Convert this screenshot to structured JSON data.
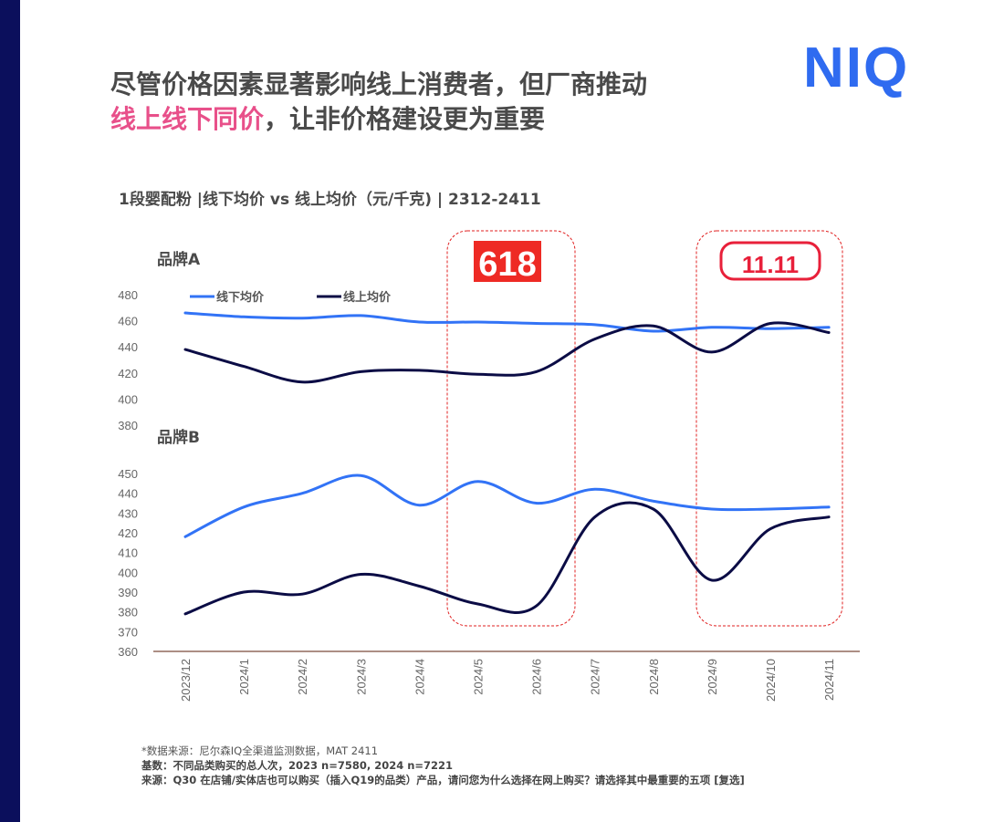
{
  "header": {
    "title_line1": "尽管价格因素显著影响线上消费者，但厂商推动",
    "title_line2_highlight": "线上线下同价",
    "title_line2_rest": "，让非价格建设更为重要",
    "logo": "NIQ"
  },
  "subtitle": "1段婴配粉 |线下均价 vs 线上均价（元/千克) | 2312-2411",
  "events": {
    "e618": "618",
    "e1111": "11.11"
  },
  "colors": {
    "offline": "#3273f6",
    "online": "#0b0c45",
    "highlight": "#e8508a",
    "event_box": "#e02020",
    "logo": "#2f6bf0"
  },
  "chart_data": [
    {
      "type": "line",
      "panel_label": "品牌A",
      "categories": [
        "2023/12",
        "2024/1",
        "2024/2",
        "2024/3",
        "2024/4",
        "2024/5",
        "2024/6",
        "2024/7",
        "2024/8",
        "2024/9",
        "2024/10",
        "2024/11"
      ],
      "ylim": [
        380,
        480
      ],
      "yticks": [
        "480",
        "460",
        "440",
        "420",
        "400",
        "380"
      ],
      "legend": "top-left",
      "grid": false,
      "series": [
        {
          "name": "线下均价",
          "values": [
            466,
            463,
            462,
            464,
            459,
            459,
            458,
            457,
            452,
            455,
            454,
            455
          ]
        },
        {
          "name": "线上均价",
          "values": [
            438,
            425,
            413,
            421,
            422,
            419,
            421,
            446,
            456,
            436,
            458,
            451
          ]
        }
      ]
    },
    {
      "type": "line",
      "panel_label": "品牌B",
      "categories": [
        "2023/12",
        "2024/1",
        "2024/2",
        "2024/3",
        "2024/4",
        "2024/5",
        "2024/6",
        "2024/7",
        "2024/8",
        "2024/9",
        "2024/10",
        "2024/11"
      ],
      "ylim": [
        360,
        450
      ],
      "yticks": [
        "450",
        "440",
        "430",
        "420",
        "410",
        "400",
        "390",
        "380",
        "370",
        "360"
      ],
      "grid": false,
      "series": [
        {
          "name": "线下均价",
          "values": [
            418,
            433,
            440,
            449,
            434,
            446,
            435,
            442,
            436,
            432,
            432,
            433
          ]
        },
        {
          "name": "线上均价",
          "values": [
            379,
            390,
            389,
            399,
            393,
            384,
            383,
            428,
            432,
            396,
            422,
            428
          ]
        }
      ]
    }
  ],
  "notes": {
    "source": "*数据来源：尼尔森IQ全渠道监测数据，MAT 2411",
    "base": "基数：不同品类购买的总人次，2023 n=7580, 2024 n=7221",
    "question": "来源：Q30 在店铺/实体店也可以购买（插入Q19的品类）产品，请问您为什么选择在网上购买？请选择其中最重要的五项 [复选]"
  }
}
